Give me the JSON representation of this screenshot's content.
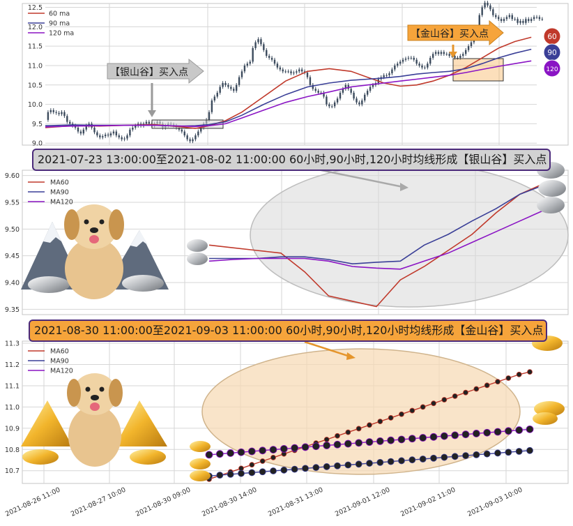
{
  "colors": {
    "ma60": "#c0392b",
    "ma90": "#3a3f97",
    "ma120": "#8a14c4",
    "silver_box": "#d8d8d8",
    "gold_box": "#f6a43b",
    "grid": "#d6d6d6",
    "frame": "#c4c4c4",
    "candle": "#3b4a5c",
    "banner_border": "#4b2a7a"
  },
  "top_panel": {
    "legend": [
      "60 ma",
      "90 ma",
      "120 ma"
    ],
    "silver_arrow_label": "【银山谷】买入点",
    "gold_arrow_label": "【金山谷】买入点",
    "end_badges": [
      "60",
      "90",
      "120"
    ]
  },
  "banners": {
    "silver": "2021-07-23 13:00:00至2021-08-02 11:00:00 60小时,90小时,120小时均线形成【银山谷】买入点",
    "gold": "2021-08-30 11:00:00至2021-09-03 11:00:00 60小时,90小时,120小时均线形成【金山谷】买入点"
  },
  "chart_data": [
    {
      "type": "line",
      "panel": "top",
      "description": "hourly candles with moving averages",
      "ylim": [
        8.95,
        12.6
      ],
      "yticks": [
        "9.0",
        "9.5",
        "10.0",
        "10.5",
        "11.0",
        "11.5",
        "12.0",
        "12.5"
      ],
      "x": [
        0,
        1,
        2,
        3,
        4,
        5,
        6,
        7,
        8,
        9,
        10,
        11,
        12,
        13,
        14,
        15,
        16,
        17,
        18,
        19,
        20,
        21,
        22,
        23,
        24,
        25,
        26,
        27,
        28,
        29,
        30,
        31,
        32,
        33,
        34,
        35,
        36,
        37,
        38,
        39,
        40,
        41,
        42,
        43,
        44,
        45,
        46,
        47,
        48,
        49,
        50,
        51,
        52,
        53,
        54,
        55,
        56,
        57,
        58,
        59,
        60,
        61,
        62,
        63,
        64,
        65,
        66,
        67,
        68,
        69,
        70,
        71,
        72,
        73,
        74,
        75,
        76,
        77,
        78,
        79,
        80,
        81,
        82,
        83,
        84,
        85,
        86,
        87,
        88,
        89,
        90,
        91,
        92,
        93,
        94,
        95,
        96,
        97,
        98,
        99,
        100,
        101,
        102,
        103,
        104,
        105,
        106,
        107,
        108,
        109,
        110,
        111,
        112,
        113,
        114,
        115,
        116,
        117,
        118,
        119,
        120,
        121,
        122,
        123,
        124,
        125,
        126,
        127,
        128,
        129,
        130,
        131,
        132,
        133,
        134,
        135,
        136,
        137,
        138,
        139,
        140,
        141,
        142,
        143,
        144,
        145,
        146,
        147,
        148,
        149,
        150,
        151,
        152,
        153,
        154,
        155,
        156,
        157,
        158,
        159,
        160,
        161,
        162,
        163,
        164,
        165,
        166,
        167,
        168,
        169,
        170,
        171,
        172,
        173,
        174,
        175,
        176,
        177,
        178,
        179,
        180
      ],
      "price": [
        9.6,
        9.8,
        9.85,
        9.8,
        9.78,
        9.75,
        9.8,
        9.7,
        9.55,
        9.5,
        9.45,
        9.4,
        9.3,
        9.25,
        9.35,
        9.45,
        9.5,
        9.4,
        9.28,
        9.2,
        9.15,
        9.18,
        9.22,
        9.2,
        9.25,
        9.3,
        9.2,
        9.15,
        9.1,
        9.12,
        9.2,
        9.35,
        9.4,
        9.45,
        9.5,
        9.45,
        9.5,
        9.55,
        9.5,
        9.45,
        9.5,
        9.55,
        9.5,
        9.4,
        9.45,
        9.5,
        9.48,
        9.45,
        9.4,
        9.35,
        9.3,
        9.2,
        9.1,
        9.05,
        9.1,
        9.2,
        9.3,
        9.4,
        9.5,
        9.6,
        9.8,
        10.1,
        10.2,
        10.3,
        10.45,
        10.55,
        10.5,
        10.45,
        10.4,
        10.35,
        10.5,
        10.7,
        10.85,
        11.0,
        11.05,
        11.1,
        11.45,
        11.6,
        11.68,
        11.55,
        11.4,
        11.25,
        11.2,
        11.15,
        11.05,
        10.95,
        10.9,
        10.85,
        10.85,
        10.85,
        10.8,
        10.82,
        10.85,
        10.9,
        10.85,
        10.82,
        10.7,
        10.5,
        10.4,
        10.35,
        10.3,
        10.3,
        10.2,
        10.0,
        9.95,
        9.95,
        10.05,
        10.15,
        10.3,
        10.4,
        10.5,
        10.4,
        10.3,
        10.15,
        10.05,
        10.0,
        10.1,
        10.25,
        10.35,
        10.45,
        10.5,
        10.55,
        10.65,
        10.7,
        10.75,
        10.75,
        10.8,
        10.9,
        11.0,
        11.05,
        11.1,
        11.15,
        11.18,
        11.2,
        11.2,
        11.15,
        11.05,
        11.0,
        10.95,
        10.95,
        11.05,
        11.2,
        11.3,
        11.35,
        11.3,
        11.35,
        11.3,
        11.3,
        11.25,
        11.25,
        11.2,
        11.2,
        11.25,
        11.3,
        11.4,
        11.5,
        11.6,
        11.8,
        12.0,
        12.3,
        12.5,
        12.62,
        12.55,
        12.45,
        12.3,
        12.25,
        12.2,
        12.15,
        12.2,
        12.25,
        12.3,
        12.2,
        12.2,
        12.1,
        12.15,
        12.1,
        12.2,
        12.15,
        12.2,
        12.25,
        12.25,
        12.2,
        12.2
      ],
      "series": [
        {
          "name": "60 ma",
          "points": [
            [
              0,
              9.4
            ],
            [
              10,
              9.45
            ],
            [
              20,
              9.44
            ],
            [
              30,
              9.46
            ],
            [
              40,
              9.48
            ],
            [
              50,
              9.42
            ],
            [
              55,
              9.38
            ],
            [
              60,
              9.45
            ],
            [
              66,
              9.58
            ],
            [
              72,
              9.8
            ],
            [
              80,
              10.2
            ],
            [
              88,
              10.6
            ],
            [
              96,
              10.85
            ],
            [
              104,
              10.92
            ],
            [
              112,
              10.85
            ],
            [
              118,
              10.7
            ],
            [
              124,
              10.55
            ],
            [
              130,
              10.47
            ],
            [
              136,
              10.5
            ],
            [
              142,
              10.6
            ],
            [
              148,
              10.75
            ],
            [
              154,
              10.95
            ],
            [
              160,
              11.2
            ],
            [
              166,
              11.45
            ],
            [
              172,
              11.62
            ],
            [
              178,
              11.73
            ]
          ]
        },
        {
          "name": "90 ma",
          "points": [
            [
              0,
              9.45
            ],
            [
              10,
              9.47
            ],
            [
              20,
              9.46
            ],
            [
              30,
              9.46
            ],
            [
              40,
              9.46
            ],
            [
              50,
              9.44
            ],
            [
              55,
              9.45
            ],
            [
              60,
              9.48
            ],
            [
              66,
              9.55
            ],
            [
              72,
              9.72
            ],
            [
              80,
              10.0
            ],
            [
              88,
              10.25
            ],
            [
              96,
              10.45
            ],
            [
              104,
              10.55
            ],
            [
              112,
              10.62
            ],
            [
              118,
              10.65
            ],
            [
              124,
              10.68
            ],
            [
              130,
              10.72
            ],
            [
              136,
              10.78
            ],
            [
              142,
              10.82
            ],
            [
              148,
              10.85
            ],
            [
              154,
              10.92
            ],
            [
              160,
              11.05
            ],
            [
              166,
              11.2
            ],
            [
              172,
              11.32
            ],
            [
              178,
              11.42
            ]
          ]
        },
        {
          "name": "120 ma",
          "points": [
            [
              0,
              9.42
            ],
            [
              10,
              9.44
            ],
            [
              20,
              9.45
            ],
            [
              30,
              9.46
            ],
            [
              40,
              9.46
            ],
            [
              50,
              9.44
            ],
            [
              55,
              9.43
            ],
            [
              60,
              9.45
            ],
            [
              66,
              9.5
            ],
            [
              72,
              9.65
            ],
            [
              80,
              9.85
            ],
            [
              88,
              10.05
            ],
            [
              96,
              10.2
            ],
            [
              104,
              10.32
            ],
            [
              112,
              10.45
            ],
            [
              118,
              10.5
            ],
            [
              124,
              10.55
            ],
            [
              130,
              10.6
            ],
            [
              136,
              10.65
            ],
            [
              142,
              10.7
            ],
            [
              148,
              10.75
            ],
            [
              154,
              10.82
            ],
            [
              160,
              10.9
            ],
            [
              166,
              10.98
            ],
            [
              172,
              11.05
            ],
            [
              178,
              11.12
            ]
          ]
        }
      ]
    },
    {
      "type": "line",
      "panel": "middle",
      "description": "silver valley zoom",
      "ylim": [
        9.34,
        9.61
      ],
      "yticks": [
        "9.35",
        "9.40",
        "9.45",
        "9.50",
        "9.55",
        "9.60"
      ],
      "x": [
        0,
        1,
        2,
        3,
        4,
        5,
        6,
        7,
        8,
        9,
        10,
        11,
        12,
        13,
        14
      ],
      "legend": [
        "MA60",
        "MA90",
        "MA120"
      ],
      "series": [
        {
          "name": "MA60",
          "values": [
            9.47,
            9.465,
            9.46,
            9.455,
            9.42,
            9.375,
            9.365,
            9.355,
            9.405,
            9.43,
            9.46,
            9.49,
            9.53,
            9.565,
            9.585
          ]
        },
        {
          "name": "MA90",
          "values": [
            9.445,
            9.445,
            9.445,
            9.448,
            9.448,
            9.443,
            9.435,
            9.438,
            9.44,
            9.47,
            9.49,
            9.515,
            9.538,
            9.565,
            9.582
          ]
        },
        {
          "name": "MA120",
          "values": [
            9.44,
            9.443,
            9.445,
            9.445,
            9.445,
            9.44,
            9.43,
            9.427,
            9.425,
            9.44,
            9.455,
            9.475,
            9.495,
            9.515,
            9.535
          ]
        }
      ]
    },
    {
      "type": "line",
      "panel": "bottom",
      "description": "gold valley zoom",
      "ylim": [
        10.64,
        11.31
      ],
      "yticks": [
        "10.7",
        "10.8",
        "10.9",
        "11.0",
        "11.1",
        "11.2",
        "11.3"
      ],
      "xticklabels": [
        "2021-08-26 11:00",
        "2021-08-27 10:00",
        "2021-08-30 09:00",
        "2021-08-30 14:00",
        "2021-08-31 13:00",
        "2021-09-01 12:00",
        "2021-09-02 11:00",
        "2021-09-03 10:00"
      ],
      "x": [
        0,
        1,
        2,
        3,
        4,
        5,
        6,
        7,
        8,
        9,
        10,
        11,
        12,
        13,
        14,
        15,
        16,
        17,
        18,
        19,
        20,
        21,
        22,
        23,
        24,
        25,
        26,
        27,
        28,
        29,
        30
      ],
      "legend": [
        "MA60",
        "MA90",
        "MA120"
      ],
      "series": [
        {
          "name": "MA60",
          "values": [
            10.66,
            10.677,
            10.694,
            10.711,
            10.728,
            10.745,
            10.762,
            10.779,
            10.796,
            10.813,
            10.83,
            10.847,
            10.864,
            10.881,
            10.898,
            10.915,
            10.932,
            10.949,
            10.966,
            10.983,
            11.0,
            11.017,
            11.034,
            11.051,
            11.068,
            11.085,
            11.102,
            11.119,
            11.136,
            11.153,
            11.165
          ]
        },
        {
          "name": "MA90",
          "values": [
            10.675,
            10.679,
            10.683,
            10.687,
            10.691,
            10.695,
            10.699,
            10.703,
            10.707,
            10.711,
            10.715,
            10.719,
            10.723,
            10.727,
            10.731,
            10.735,
            10.739,
            10.743,
            10.747,
            10.751,
            10.755,
            10.759,
            10.763,
            10.767,
            10.771,
            10.775,
            10.779,
            10.783,
            10.787,
            10.791,
            10.795
          ]
        },
        {
          "name": "MA120",
          "values": [
            10.775,
            10.779,
            10.783,
            10.787,
            10.791,
            10.795,
            10.799,
            10.803,
            10.807,
            10.811,
            10.815,
            10.819,
            10.823,
            10.827,
            10.831,
            10.835,
            10.839,
            10.843,
            10.847,
            10.851,
            10.855,
            10.859,
            10.863,
            10.867,
            10.871,
            10.875,
            10.879,
            10.883,
            10.887,
            10.891,
            10.895
          ]
        }
      ]
    }
  ]
}
